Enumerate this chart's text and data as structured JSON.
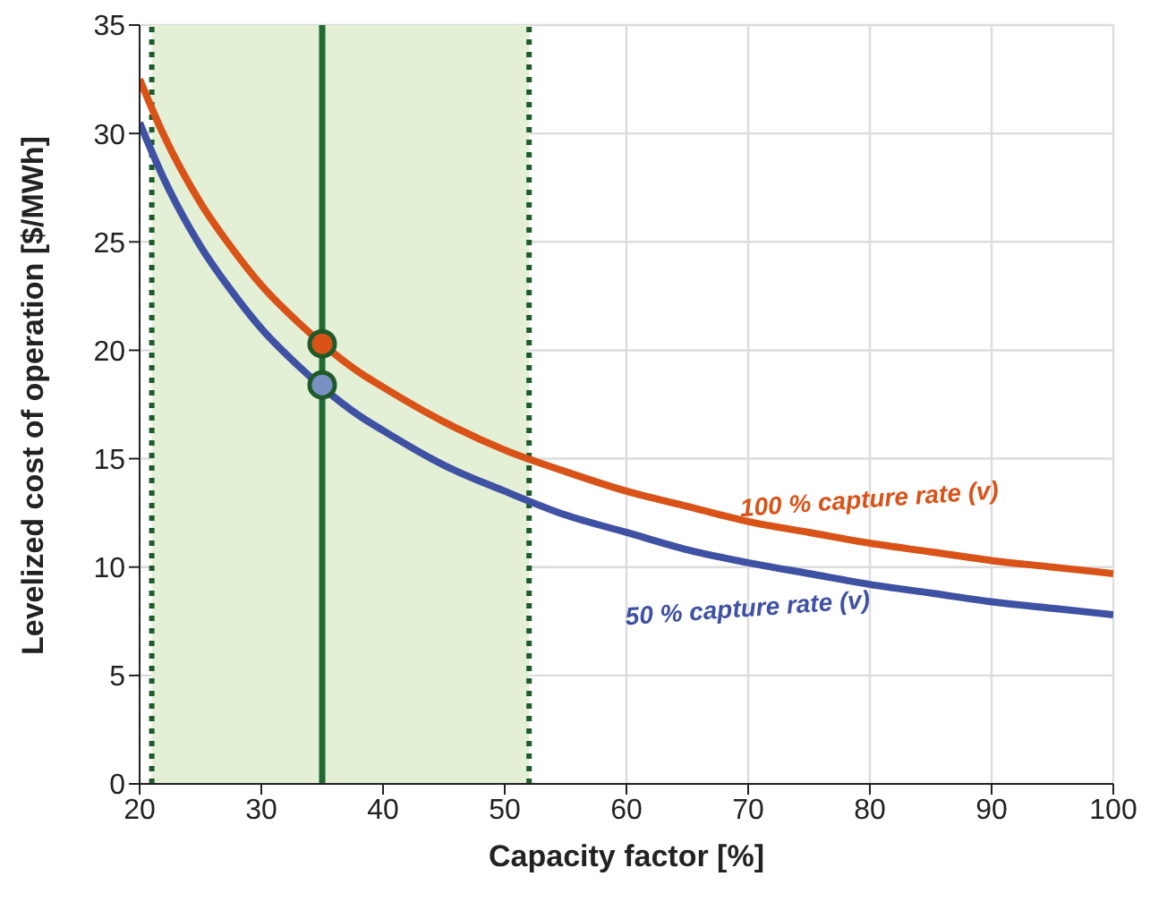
{
  "chart_data": {
    "type": "line",
    "xlabel": "Capacity factor [%]",
    "ylabel": "Levelized cost of operation [$/MWh]",
    "x": [
      20,
      22,
      25,
      28,
      30,
      33,
      35,
      38,
      40,
      45,
      50,
      55,
      60,
      65,
      70,
      75,
      80,
      85,
      90,
      95,
      100
    ],
    "series": [
      {
        "name": "100 % capture rate (v)",
        "color": "#d95319",
        "values": [
          32.5,
          29.9,
          26.8,
          24.4,
          23.0,
          21.3,
          20.3,
          19.0,
          18.3,
          16.7,
          15.4,
          14.4,
          13.5,
          12.8,
          12.1,
          11.6,
          11.1,
          10.7,
          10.3,
          10.0,
          9.7
        ]
      },
      {
        "name": "50 % capture rate (v)",
        "color": "#3f51a3",
        "values": [
          30.5,
          27.9,
          24.8,
          22.4,
          21.0,
          19.3,
          18.3,
          17.0,
          16.3,
          14.7,
          13.5,
          12.4,
          11.6,
          10.8,
          10.2,
          9.7,
          9.2,
          8.8,
          8.4,
          8.1,
          7.8
        ]
      },
      {
        "type": "scatter",
        "marker": "circle",
        "color": "#d95319",
        "x": [
          35
        ],
        "values": [
          20.3
        ]
      },
      {
        "type": "scatter",
        "marker": "circle",
        "color": "#7a8fc4",
        "x": [
          35
        ],
        "values": [
          18.4
        ]
      }
    ],
    "bands": [
      {
        "axis": "x",
        "from": 21,
        "to": 52,
        "color": "#e4f0d6"
      }
    ],
    "ref_lines": [
      {
        "axis": "x",
        "value": 35,
        "color": "#1e6b35",
        "line_style": "solid"
      },
      {
        "axis": "x",
        "value": 21,
        "color": "#1e5a2a",
        "line_style": "dotted"
      },
      {
        "axis": "x",
        "value": 52,
        "color": "#1e5a2a",
        "line_style": "dotted"
      }
    ],
    "xlim": [
      20,
      100
    ],
    "xticks": [
      20,
      30,
      40,
      50,
      60,
      70,
      80,
      90,
      100
    ],
    "ylim": [
      0,
      35
    ],
    "yticks": [
      0,
      5,
      10,
      15,
      20,
      25,
      30,
      35
    ],
    "grid": true,
    "legend": false,
    "marker": "none",
    "line_style": "solid"
  }
}
